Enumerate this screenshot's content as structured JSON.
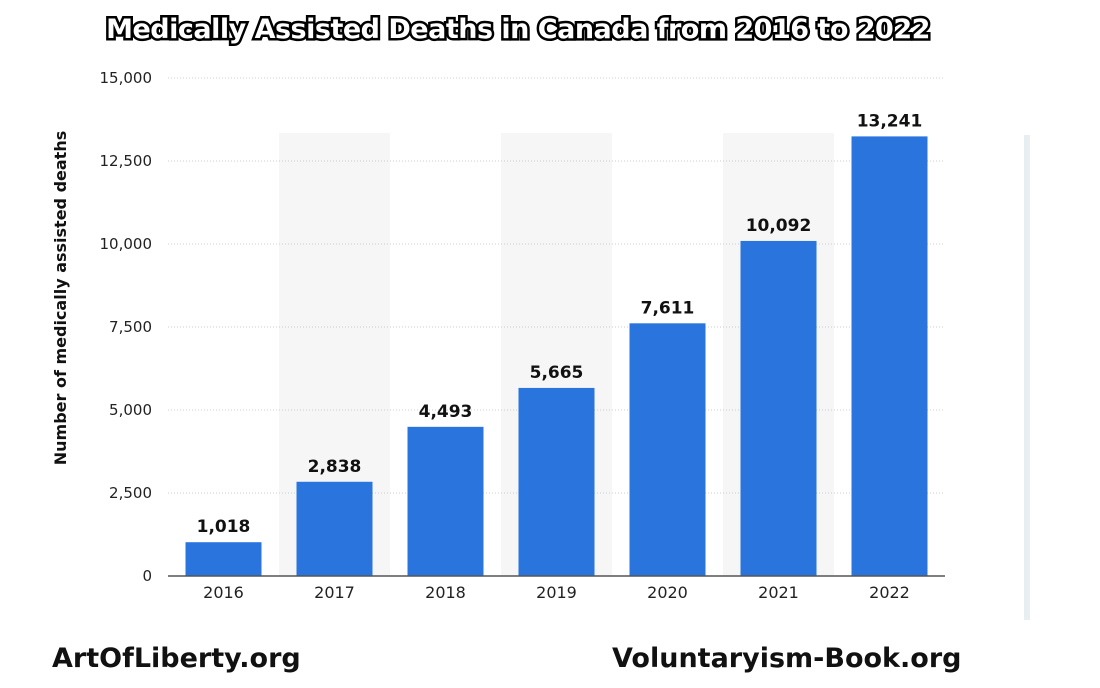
{
  "chart_data": {
    "type": "bar",
    "title": "Medically Assisted Deaths in Canada from 2016 to 2022",
    "xlabel": "",
    "ylabel": "Number of medically assisted deaths",
    "categories": [
      "2016",
      "2017",
      "2018",
      "2019",
      "2020",
      "2021",
      "2022"
    ],
    "values": [
      1018,
      2838,
      4493,
      5665,
      7611,
      10092,
      13241
    ],
    "value_labels": [
      "1,018",
      "2,838",
      "4,493",
      "5,665",
      "7,611",
      "10,092",
      "13,241"
    ],
    "ylim": [
      0,
      15000
    ],
    "yticks": [
      0,
      2500,
      5000,
      7500,
      10000,
      12500,
      15000
    ],
    "ytick_labels": [
      "0",
      "2,500",
      "5,000",
      "7,500",
      "10,000",
      "12,500",
      "15,000"
    ],
    "grid": true,
    "bar_color": "#2a74dd"
  },
  "footer": {
    "left": "ArtOfLiberty.org",
    "right": "Voluntaryism-Book.org"
  }
}
